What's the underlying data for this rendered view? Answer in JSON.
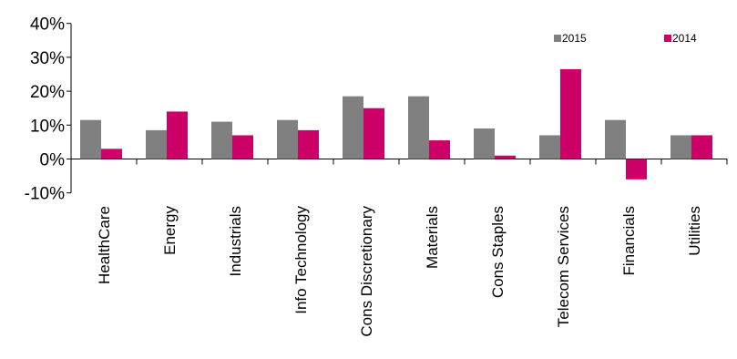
{
  "chart_data": {
    "type": "bar",
    "categories": [
      "HealthCare",
      "Energy",
      "Industrials",
      "Info Technology",
      "Cons Discretionary",
      "Materials",
      "Cons Staples",
      "Telecom Services",
      "Financials",
      "Utilities"
    ],
    "series": [
      {
        "name": "2015",
        "color": "#808080",
        "values": [
          11.5,
          8.5,
          11,
          11.5,
          18.5,
          18.5,
          9,
          7,
          11.5,
          7
        ]
      },
      {
        "name": "2014",
        "color": "#cc0066",
        "values": [
          3,
          14,
          7,
          8.5,
          15,
          5.5,
          1,
          26.5,
          -6,
          7
        ]
      }
    ],
    "y_ticks": [
      "-10%",
      "0%",
      "10%",
      "20%",
      "30%",
      "40%"
    ],
    "ylim": [
      -10,
      40
    ],
    "title": "",
    "xlabel": "",
    "ylabel": "",
    "legend": "top-right",
    "grid": false
  }
}
